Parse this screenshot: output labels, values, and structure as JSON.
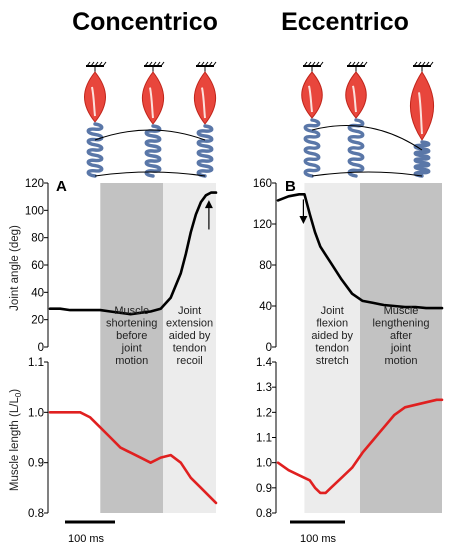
{
  "chart_data": [
    {
      "type": "line",
      "title": "Concentrico",
      "panel_label": "A",
      "x_unit": "ms",
      "scale_bar_label": "100 ms",
      "shaded_regions": [
        {
          "x_range": [
            100,
            225
          ],
          "shade": "dark gray",
          "annotation": [
            "Muscle",
            "shortening",
            "before",
            "joint",
            "motion"
          ]
        },
        {
          "x_range": [
            225,
            330
          ],
          "shade": "light gray",
          "annotation": [
            "Joint",
            "extension",
            "aided by",
            "tendon",
            "recoil"
          ]
        }
      ],
      "panels": [
        {
          "name": "joint_angle",
          "ylabel": "Joint angle (deg)",
          "ylim": [
            0,
            120
          ],
          "yticks": [
            0,
            20,
            40,
            60,
            80,
            100,
            120
          ],
          "series": [
            {
              "color": "#000000",
              "arrow": "up",
              "x": [
                0,
                20,
                40,
                60,
                80,
                100,
                120,
                140,
                160,
                180,
                200,
                220,
                240,
                260,
                270,
                280,
                290,
                300,
                310,
                320,
                330
              ],
              "y": [
                28,
                28,
                27,
                27,
                27,
                27,
                26,
                25,
                24,
                25,
                26,
                28,
                36,
                54,
                68,
                84,
                97,
                106,
                111,
                113,
                113
              ]
            }
          ]
        },
        {
          "name": "muscle_length",
          "ylabel": "Muscle length (L/L0)",
          "ylim": [
            0.8,
            1.1
          ],
          "yticks": [
            0.8,
            0.9,
            1.0,
            1.1
          ],
          "series": [
            {
              "color": "#e02020",
              "x": [
                0,
                20,
                40,
                60,
                80,
                100,
                120,
                140,
                160,
                180,
                200,
                220,
                240,
                260,
                280,
                300,
                320,
                330
              ],
              "y": [
                1.0,
                1.0,
                1.0,
                1.0,
                0.99,
                0.97,
                0.95,
                0.93,
                0.92,
                0.91,
                0.9,
                0.91,
                0.915,
                0.9,
                0.87,
                0.85,
                0.83,
                0.82
              ]
            }
          ]
        }
      ]
    },
    {
      "type": "line",
      "title": "Eccentrico",
      "panel_label": "B",
      "x_unit": "ms",
      "scale_bar_label": "100 ms",
      "shaded_regions": [
        {
          "x_range": [
            50,
            155
          ],
          "shade": "light gray",
          "annotation": [
            "Joint",
            "flexion",
            "aided by",
            "tendon",
            "stretch"
          ]
        },
        {
          "x_range": [
            155,
            310
          ],
          "shade": "dark gray",
          "annotation": [
            "Muscle",
            "lengthening",
            "after",
            "joint",
            "motion"
          ]
        }
      ],
      "panels": [
        {
          "name": "joint_angle",
          "ylabel": "",
          "ylim": [
            0,
            160
          ],
          "yticks": [
            0,
            40,
            80,
            120,
            160
          ],
          "series": [
            {
              "color": "#000000",
              "arrow": "down",
              "x": [
                0,
                20,
                40,
                50,
                60,
                70,
                80,
                90,
                100,
                120,
                140,
                160,
                180,
                200,
                220,
                240,
                260,
                280,
                300,
                310
              ],
              "y": [
                143,
                147,
                149,
                149,
                130,
                112,
                98,
                90,
                82,
                66,
                52,
                45,
                43,
                41,
                40,
                39,
                39,
                38,
                38,
                38
              ]
            }
          ]
        },
        {
          "name": "muscle_length",
          "ylabel": "",
          "ylim": [
            0.8,
            1.4
          ],
          "yticks": [
            0.8,
            0.9,
            1.0,
            1.1,
            1.2,
            1.3,
            1.4
          ],
          "series": [
            {
              "color": "#e02020",
              "x": [
                0,
                20,
                40,
                60,
                70,
                80,
                90,
                100,
                120,
                140,
                160,
                180,
                200,
                220,
                240,
                260,
                280,
                300,
                310
              ],
              "y": [
                1.0,
                0.97,
                0.95,
                0.93,
                0.9,
                0.88,
                0.88,
                0.9,
                0.94,
                0.98,
                1.04,
                1.09,
                1.14,
                1.19,
                1.22,
                1.23,
                1.24,
                1.25,
                1.25
              ]
            }
          ]
        }
      ]
    }
  ],
  "labels": {
    "title_left": "Concentrico",
    "title_right": "Eccentrico",
    "panel_left": "A",
    "panel_right": "B",
    "ylabel_angle": "Joint angle (deg)",
    "ylabel_length": "Muscle length (L/L",
    "ylabel_length_sub": "0",
    "ylabel_length_close": ")",
    "scale_left": "100 ms",
    "scale_right": "100 ms"
  },
  "colors": {
    "dark_shade": "#c2c2c2",
    "light_shade": "#ececec",
    "angle_line": "#000000",
    "length_line": "#e02020",
    "muscle": "#e8463c",
    "tendon": "#5a77a8"
  },
  "icons": [
    "muscle-tendon-unit-icon",
    "ground-anchor-icon"
  ]
}
